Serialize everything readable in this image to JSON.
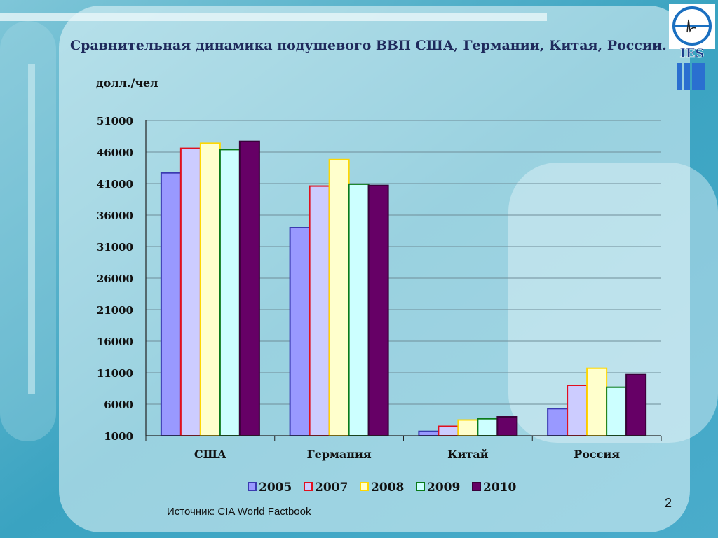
{
  "title": "Сравнительная динамика подушевого ВВП США, Германии, Китая, России.",
  "unit_label": "долл./чел",
  "source": "Источник: CIA World Factbook",
  "page_number": "2",
  "logo_text": "IES",
  "colors": {
    "background": "#3fa7c4",
    "title": "#1f2a5c"
  },
  "chart_data": {
    "type": "bar",
    "title": "",
    "xlabel": "",
    "ylabel": "долл./чел",
    "ylim": [
      1000,
      51000
    ],
    "yticks": [
      1000,
      6000,
      11000,
      16000,
      21000,
      26000,
      31000,
      36000,
      41000,
      46000,
      51000
    ],
    "grid": true,
    "legend_position": "bottom",
    "categories": [
      "США",
      "Германия",
      "Китай",
      "Россия"
    ],
    "series": [
      {
        "name": "2005",
        "fill": "#9999ff",
        "stroke": "#3a3ab0",
        "values": [
          42700,
          34000,
          1700,
          5300
        ]
      },
      {
        "name": "2007",
        "fill": "#ccccff",
        "stroke": "#e0101e",
        "values": [
          46600,
          40600,
          2500,
          9000
        ]
      },
      {
        "name": "2008",
        "fill": "#ffffcc",
        "stroke": "#ffd700",
        "values": [
          47400,
          44800,
          3500,
          11700
        ]
      },
      {
        "name": "2009",
        "fill": "#ccffff",
        "stroke": "#0a7a1a",
        "values": [
          46400,
          40900,
          3700,
          8700
        ]
      },
      {
        "name": "2010",
        "fill": "#660066",
        "stroke": "#3a003a",
        "values": [
          47700,
          40700,
          4000,
          10700
        ]
      }
    ]
  }
}
